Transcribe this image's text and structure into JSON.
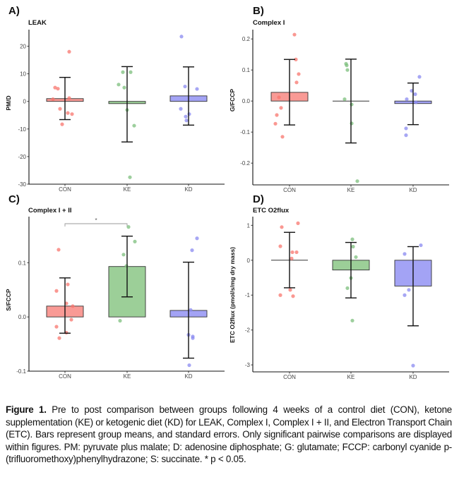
{
  "figure": {
    "caption_label": "Figure 1.",
    "caption_text": " Pre to post comparison between groups following 4 weeks of a control diet (CON), ketone supplementation (KE) or ketogenic diet (KD) for LEAK, Complex I, Complex I + II, and Electron Transport Chain (ETC). Bars represent group means, and standard errors. Only significant pairwise comparisons are displayed within figures. PM: pyruvate plus malate; D: adenosine diphosphate; G: glutamate; FCCP: carbonyl cyanide p-(trifluoromethoxy)phenylhydrazone; S: succinate. * p < 0.05."
  },
  "colors": {
    "CON": "#F8766D",
    "KE": "#7CBF7C",
    "KD": "#8A8AF0",
    "bar_CON": "#F99A95",
    "bar_KE": "#9CCF98",
    "bar_KD": "#A3A3F5"
  },
  "chart_data": [
    {
      "panel": "A)",
      "type": "bar",
      "title": "LEAK",
      "xlabel": "",
      "ylabel": "PM/D",
      "categories": [
        "CON",
        "KE",
        "KD"
      ],
      "ylim": [
        -30,
        26
      ],
      "yticks": [
        20,
        10,
        0,
        -10,
        -20,
        -30
      ],
      "ytick_labels": [
        "20",
        "10",
        "0",
        "-10",
        "-20",
        "-30"
      ],
      "means": [
        1.0,
        -0.8,
        2.0
      ],
      "error_bars": [
        [
          -6.6,
          8.7
        ],
        [
          -14.7,
          12.6
        ],
        [
          -8.6,
          12.5
        ]
      ],
      "points": [
        [
          18,
          5,
          4.6,
          0.8,
          1.2,
          -2.7,
          -4.6,
          -4.2,
          -8.3
        ],
        [
          10.6,
          10.6,
          6.1,
          5.0,
          -3.1,
          -8.8,
          -27.5
        ],
        [
          23.5,
          5.4,
          4.5,
          -2.7,
          -4.6,
          -5.5,
          -6.9
        ]
      ],
      "significance": []
    },
    {
      "panel": "B)",
      "type": "bar",
      "title": "Complex I",
      "xlabel": "",
      "ylabel": "G/FCCP",
      "categories": [
        "CON",
        "KE",
        "KD"
      ],
      "ylim": [
        -0.27,
        0.23
      ],
      "yticks": [
        0.2,
        0.1,
        0.0,
        -0.1,
        -0.2
      ],
      "ytick_labels": [
        "0.2",
        "0.1",
        "0.0",
        "-0.1",
        "-0.2"
      ],
      "means": [
        0.028,
        0.0,
        -0.008
      ],
      "error_bars": [
        [
          -0.077,
          0.134
        ],
        [
          -0.135,
          0.135
        ],
        [
          -0.076,
          0.058
        ]
      ],
      "points": [
        [
          0.214,
          0.134,
          0.087,
          0.06,
          0.012,
          -0.022,
          -0.045,
          -0.073,
          -0.115
        ],
        [
          0.12,
          0.115,
          0.1,
          0.006,
          -0.011,
          -0.072,
          -0.258
        ],
        [
          0.078,
          0.033,
          0.022,
          0.006,
          -0.004,
          -0.088,
          -0.11
        ]
      ],
      "significance": []
    },
    {
      "panel": "C)",
      "type": "bar",
      "title": "Complex I + II",
      "xlabel": "",
      "ylabel": "S/FCCP",
      "categories": [
        "CON",
        "KE",
        "KD"
      ],
      "ylim": [
        -0.1,
        0.185
      ],
      "yticks": [
        0.1,
        0.0,
        -0.1
      ],
      "ytick_labels": [
        "0.1",
        "0.0",
        "-0.1"
      ],
      "means": [
        0.02,
        0.093,
        0.012
      ],
      "error_bars": [
        [
          -0.03,
          0.072
        ],
        [
          0.037,
          0.149
        ],
        [
          -0.076,
          0.101
        ]
      ],
      "points": [
        [
          0.124,
          0.06,
          0.048,
          0.025,
          0.02,
          -0.005,
          -0.018,
          -0.029,
          -0.039
        ],
        [
          0.166,
          0.139,
          0.115,
          0.094,
          -0.007
        ],
        [
          0.145,
          0.123,
          0.013,
          -0.033,
          -0.036,
          -0.039,
          -0.089
        ]
      ],
      "significance": [
        {
          "from": "CON",
          "to": "KE",
          "label": "*"
        }
      ]
    },
    {
      "panel": "D)",
      "type": "bar",
      "title": "ETC O2flux",
      "xlabel": "",
      "ylabel": "ETC O2flux (pmol/s/mg dry mass)",
      "categories": [
        "CON",
        "KE",
        "KD"
      ],
      "ylim": [
        -3.2,
        1.25
      ],
      "yticks": [
        1,
        0,
        -1,
        -2,
        -3
      ],
      "ytick_labels": [
        "1",
        "0",
        "-1",
        "-2",
        "-3"
      ],
      "means": [
        0.0,
        -0.28,
        -0.74
      ],
      "error_bars": [
        [
          -0.79,
          0.8
        ],
        [
          -1.08,
          0.51
        ],
        [
          -1.88,
          0.39
        ]
      ],
      "points": [
        [
          1.06,
          0.95,
          0.4,
          0.23,
          0.23,
          0.05,
          -0.85,
          -1.0,
          -1.03
        ],
        [
          0.6,
          0.39,
          0.09,
          -0.51,
          -0.8,
          -1.73
        ],
        [
          0.43,
          0.18,
          -0.85,
          -1.0,
          -3.02
        ]
      ],
      "significance": []
    }
  ]
}
